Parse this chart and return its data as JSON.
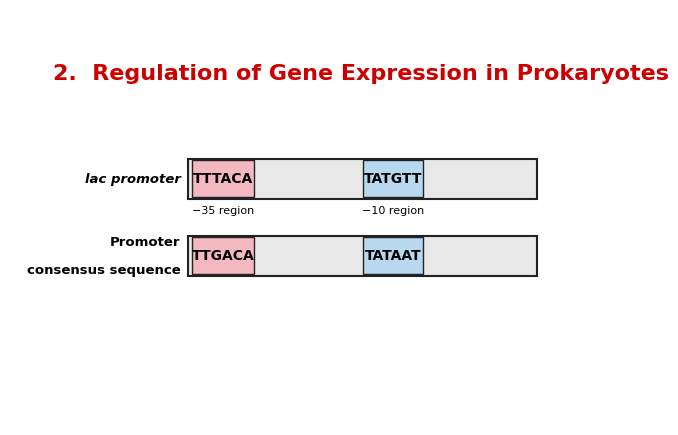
{
  "title": "2.  Regulation of Gene Expression in Prokaryotes",
  "title_color": "#cc0000",
  "title_fontsize": 16,
  "background_color": "#ffffff",
  "row1_label": "lac promoter",
  "row2_label_line1": "Promoter",
  "row2_label_line2": "consensus sequence",
  "row1_box1_text": "TTTACA",
  "row1_box1_color": "#f4b8c1",
  "row1_box2_text": "TATGTT",
  "row1_box2_color": "#b8d8f0",
  "row2_box1_text": "TTGACA",
  "row2_box1_color": "#f4b8c1",
  "row2_box2_text": "TATAAT",
  "row2_box2_color": "#b8d8f0",
  "region_label1": "−35 region",
  "region_label2": "−10 region",
  "bar_bg_color": "#e8e8e8",
  "bar_border_color": "#222222",
  "label_fontsize": 9.5,
  "seq_fontsize": 10,
  "region_label_fontsize": 8
}
